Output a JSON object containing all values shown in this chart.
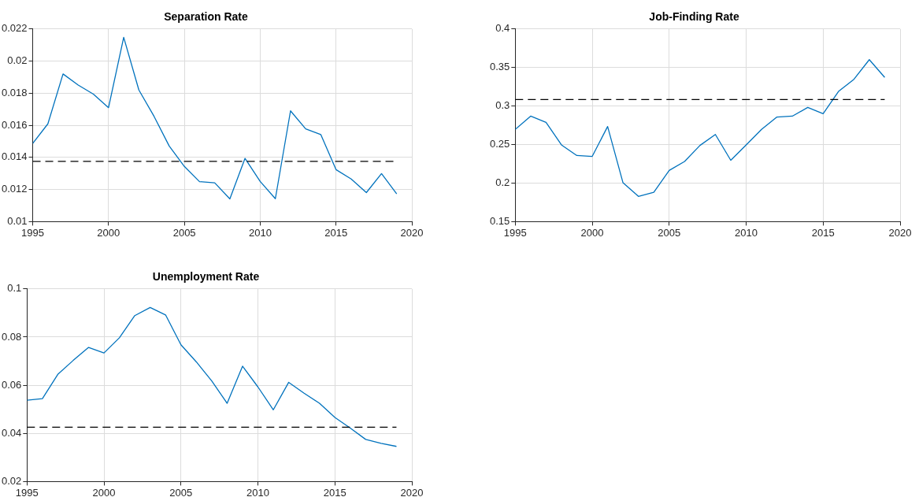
{
  "chart_data": [
    {
      "type": "line",
      "title": "Separation Rate",
      "x": [
        1995,
        1996,
        1997,
        1998,
        1999,
        2000,
        2001,
        2002,
        2003,
        2004,
        2005,
        2006,
        2007,
        2008,
        2009,
        2010,
        2011,
        2012,
        2013,
        2014,
        2015,
        2016,
        2017,
        2018,
        2019
      ],
      "series": [
        {
          "color": "#0072bd",
          "values": [
            0.01487,
            0.01609,
            0.0192,
            0.01851,
            0.01794,
            0.0171,
            0.02148,
            0.0182,
            0.01656,
            0.01471,
            0.01344,
            0.01249,
            0.01242,
            0.01142,
            0.01394,
            0.0125,
            0.01143,
            0.0169,
            0.01578,
            0.01542,
            0.01324,
            0.01266,
            0.01181,
            0.01299,
            0.01173
          ]
        }
      ],
      "xlim": [
        1995,
        2020
      ],
      "xticks": [
        1995,
        2000,
        2005,
        2010,
        2015,
        2020
      ],
      "ylim": [
        0.01,
        0.022
      ],
      "yticks": [
        0.01,
        0.012,
        0.014,
        0.016,
        0.018,
        0.02,
        0.022
      ],
      "grid": true,
      "marker": "none",
      "line_style": "solid",
      "ref_lines": [
        {
          "axis": "y",
          "value": 0.01375,
          "color": "#000000",
          "line_style": "dashed"
        }
      ]
    },
    {
      "type": "line",
      "title": "Job-Finding Rate",
      "x": [
        1995,
        1996,
        1997,
        1998,
        1999,
        2000,
        2001,
        2002,
        2003,
        2004,
        2005,
        2006,
        2007,
        2008,
        2009,
        2010,
        2011,
        2012,
        2013,
        2014,
        2015,
        2016,
        2017,
        2018,
        2019
      ],
      "series": [
        {
          "color": "#0072bd",
          "values": [
            0.2697,
            0.2869,
            0.2788,
            0.2496,
            0.2358,
            0.2347,
            0.2734,
            0.2004,
            0.1828,
            0.188,
            0.2164,
            0.2281,
            0.2489,
            0.2631,
            0.2296,
            0.2496,
            0.2697,
            0.2858,
            0.2869,
            0.2982,
            0.2901,
            0.319,
            0.3347,
            0.3602,
            0.3372
          ]
        }
      ],
      "xlim": [
        1995,
        2020
      ],
      "xticks": [
        1995,
        2000,
        2005,
        2010,
        2015,
        2020
      ],
      "ylim": [
        0.15,
        0.4
      ],
      "yticks": [
        0.15,
        0.2,
        0.25,
        0.3,
        0.35,
        0.4
      ],
      "grid": true,
      "marker": "none",
      "line_style": "solid",
      "ref_lines": [
        {
          "axis": "y",
          "value": 0.3084,
          "color": "#000000",
          "line_style": "dashed"
        }
      ]
    },
    {
      "type": "line",
      "title": "Unemployment Rate",
      "x": [
        1995,
        1996,
        1997,
        1998,
        1999,
        2000,
        2001,
        2002,
        2003,
        2004,
        2005,
        2006,
        2007,
        2008,
        2009,
        2010,
        2011,
        2012,
        2013,
        2014,
        2015,
        2016,
        2017,
        2018,
        2019
      ],
      "series": [
        {
          "color": "#0072bd",
          "values": [
            0.0538,
            0.0544,
            0.0645,
            0.0703,
            0.0757,
            0.0734,
            0.0797,
            0.0889,
            0.0923,
            0.0892,
            0.0768,
            0.0697,
            0.0618,
            0.0525,
            0.0679,
            0.0593,
            0.0498,
            0.0612,
            0.0567,
            0.0525,
            0.0466,
            0.0422,
            0.0375,
            0.0359,
            0.0346
          ]
        }
      ],
      "xlim": [
        1995,
        2020
      ],
      "xticks": [
        1995,
        2000,
        2005,
        2010,
        2015,
        2020
      ],
      "ylim": [
        0.02,
        0.1
      ],
      "yticks": [
        0.02,
        0.04,
        0.06,
        0.08,
        0.1
      ],
      "grid": true,
      "marker": "none",
      "line_style": "solid",
      "ref_lines": [
        {
          "axis": "y",
          "value": 0.0426,
          "color": "#000000",
          "line_style": "dashed"
        }
      ]
    }
  ]
}
